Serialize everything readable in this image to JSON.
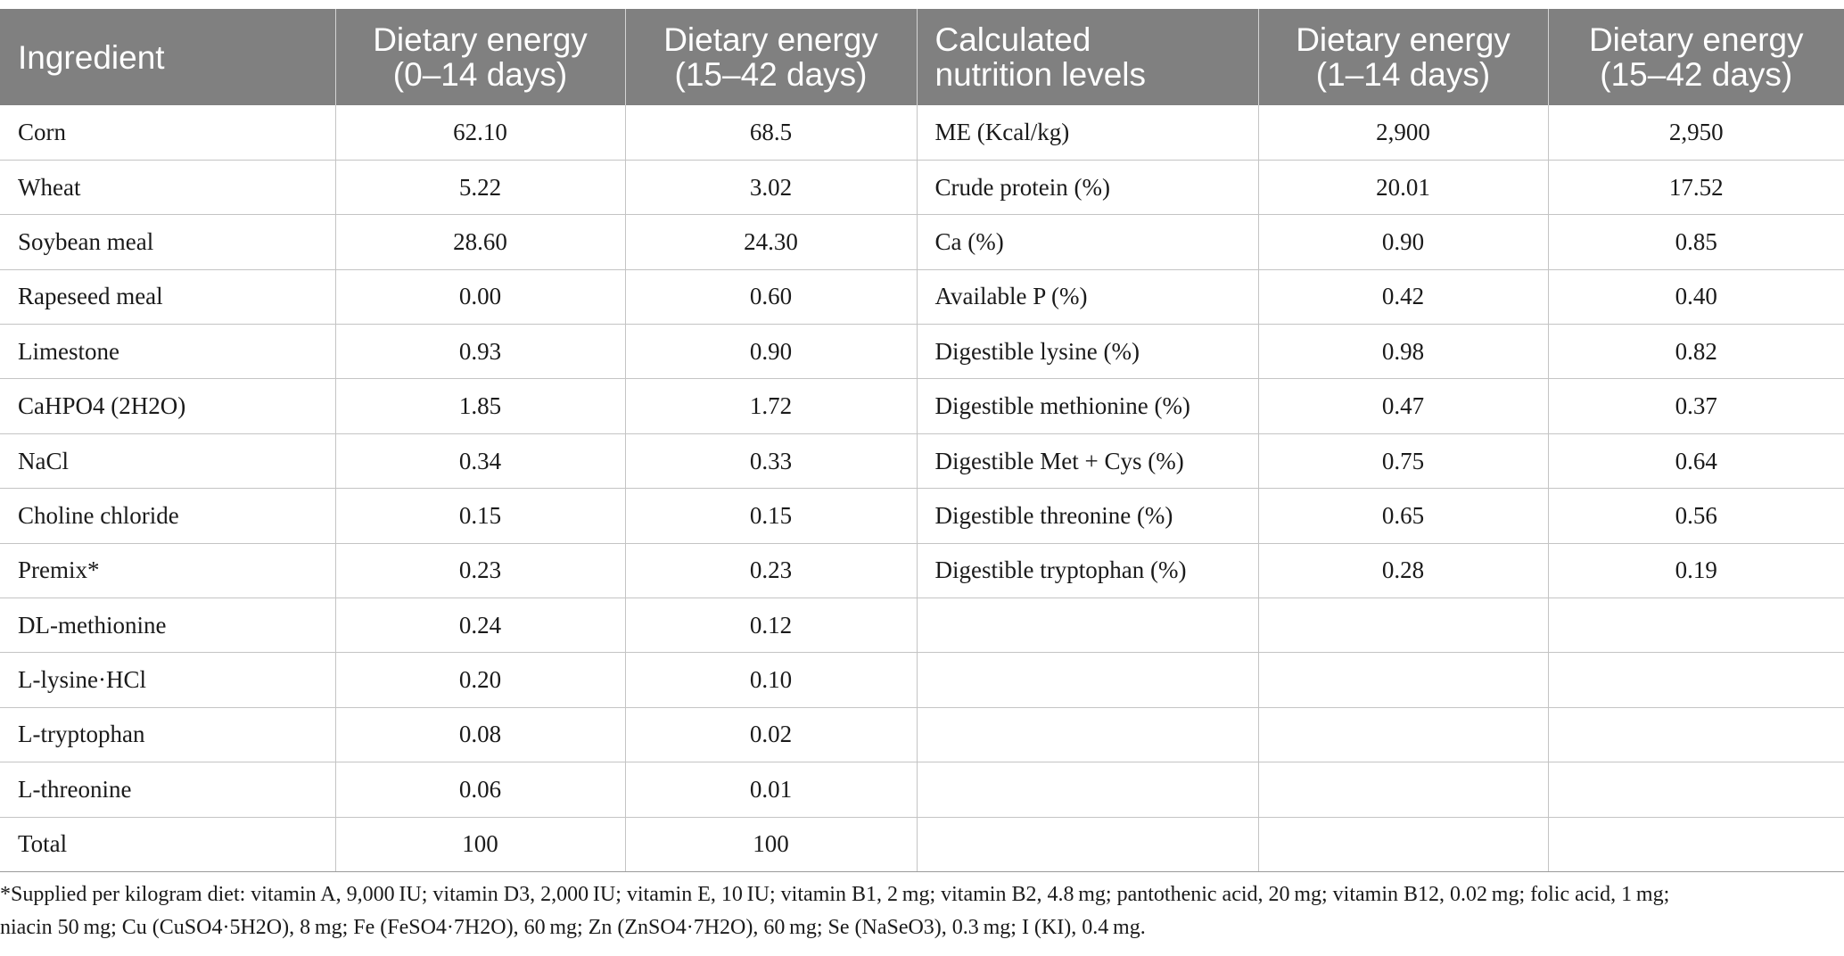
{
  "table": {
    "headers": [
      {
        "line1": "Ingredient",
        "line2": ""
      },
      {
        "line1": "Dietary energy",
        "line2": "(0–14 days)"
      },
      {
        "line1": "Dietary energy",
        "line2": "(15–42 days)"
      },
      {
        "line1": "Calculated",
        "line2": "nutrition levels"
      },
      {
        "line1": "Dietary energy",
        "line2": "(1–14 days)"
      },
      {
        "line1": "Dietary energy",
        "line2": "(15–42 days)"
      }
    ],
    "rows": [
      [
        "Corn",
        "62.10",
        "68.5",
        "ME (Kcal/kg)",
        "2,900",
        "2,950"
      ],
      [
        "Wheat",
        "5.22",
        "3.02",
        "Crude protein (%)",
        "20.01",
        "17.52"
      ],
      [
        "Soybean meal",
        "28.60",
        "24.30",
        "Ca (%)",
        "0.90",
        "0.85"
      ],
      [
        "Rapeseed meal",
        "0.00",
        "0.60",
        "Available P (%)",
        "0.42",
        "0.40"
      ],
      [
        "Limestone",
        "0.93",
        "0.90",
        "Digestible lysine (%)",
        "0.98",
        "0.82"
      ],
      [
        "CaHPO4 (2H2O)",
        "1.85",
        "1.72",
        "Digestible methionine (%)",
        "0.47",
        "0.37"
      ],
      [
        "NaCl",
        "0.34",
        "0.33",
        "Digestible Met + Cys (%)",
        "0.75",
        "0.64"
      ],
      [
        "Choline chloride",
        "0.15",
        "0.15",
        "Digestible threonine (%)",
        "0.65",
        "0.56"
      ],
      [
        "Premix*",
        "0.23",
        "0.23",
        "Digestible tryptophan (%)",
        "0.28",
        "0.19"
      ],
      [
        "DL-methionine",
        "0.24",
        "0.12",
        "",
        "",
        ""
      ],
      [
        "L-lysine·HCl",
        "0.20",
        "0.10",
        "",
        "",
        ""
      ],
      [
        "L-tryptophan",
        "0.08",
        "0.02",
        "",
        "",
        ""
      ],
      [
        "L-threonine",
        "0.06",
        "0.01",
        "",
        "",
        ""
      ],
      [
        "Total",
        "100",
        "100",
        "",
        "",
        ""
      ]
    ]
  },
  "footnote": {
    "line1": "*Supplied per kilogram diet: vitamin A, 9,000 IU; vitamin D3, 2,000 IU; vitamin E, 10 IU; vitamin B1, 2 mg; vitamin B2, 4.8 mg; pantothenic acid, 20 mg; vitamin B12, 0.02 mg; folic acid, 1 mg;",
    "line2": "niacin 50 mg; Cu (CuSO4·5H2O), 8 mg; Fe (FeSO4·7H2O), 60 mg; Zn (ZnSO4·7H2O), 60 mg; Se (NaSeO3), 0.3 mg; I (KI), 0.4 mg."
  }
}
